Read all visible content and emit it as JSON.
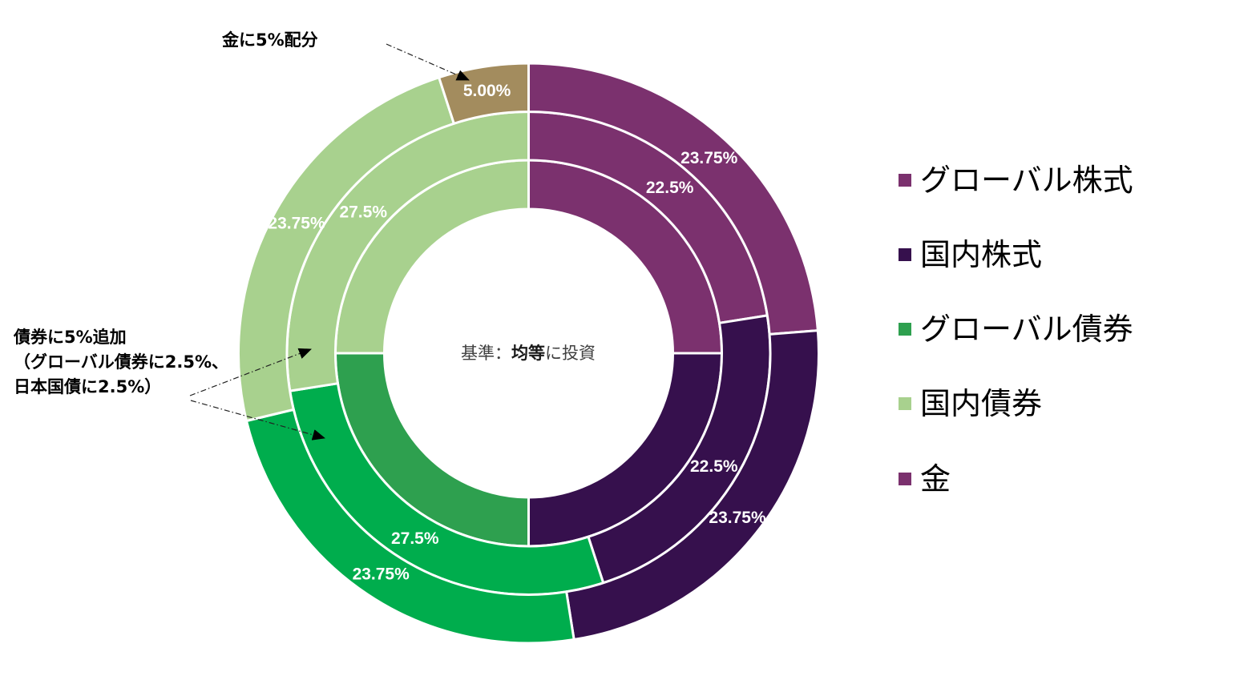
{
  "annotations": {
    "gold_note": "金に5%配分",
    "bond_note": {
      "line1": "債券に5%追加",
      "line2": "（グローバル債券に2.5%、",
      "line3": "日本国債に2.5%）"
    }
  },
  "center_label": {
    "prefix": "基準：",
    "emphasis": "均等",
    "suffix": "に投資"
  },
  "legend": {
    "position": "right",
    "items": [
      {
        "label": "グローバル株式",
        "color": "#7B316E"
      },
      {
        "label": "国内株式",
        "color": "#36104D"
      },
      {
        "label": "グローバル債券",
        "color": "#2EA04F"
      },
      {
        "label": "国内債券",
        "color": "#A8D18E"
      },
      {
        "label": "金",
        "color": "#7B316E"
      }
    ]
  },
  "chart_data": {
    "type": "pie",
    "variant": "multi-ring donut",
    "title": "",
    "center_label": "基準：均等に投資",
    "start_angle": 0,
    "direction": "clockwise",
    "legend_position": "right",
    "categories": [
      "グローバル株式",
      "国内株式",
      "グローバル債券",
      "国内債券",
      "金"
    ],
    "series": [
      {
        "name": "inner",
        "ring": "inner",
        "values": [
          25,
          25,
          25,
          25,
          0
        ],
        "data_labels": [],
        "colors": [
          "#7B316E",
          "#36104D",
          "#2EA04F",
          "#A8D18E",
          "#A38C5E"
        ]
      },
      {
        "name": "middle",
        "ring": "middle",
        "values": [
          22.5,
          22.5,
          27.5,
          27.5,
          0
        ],
        "data_labels": [
          "22.5%",
          "22.5%",
          "27.5%",
          "27.5%",
          ""
        ],
        "colors": [
          "#7B316E",
          "#36104D",
          "#00AD4D",
          "#A8D18E",
          "#A38C5E"
        ]
      },
      {
        "name": "outer",
        "ring": "outer",
        "values": [
          23.75,
          23.75,
          23.75,
          23.75,
          5
        ],
        "data_labels": [
          "23.75%",
          "23.75%",
          "23.75%",
          "23.75%",
          "5.00%"
        ],
        "colors": [
          "#7B316E",
          "#36104D",
          "#00AD4D",
          "#A8D18E",
          "#A38C5E"
        ]
      }
    ],
    "annotations": [
      "金に5%配分",
      "債券に5%追加（グローバル債券に2.5%、日本国債に2.5%）"
    ]
  }
}
